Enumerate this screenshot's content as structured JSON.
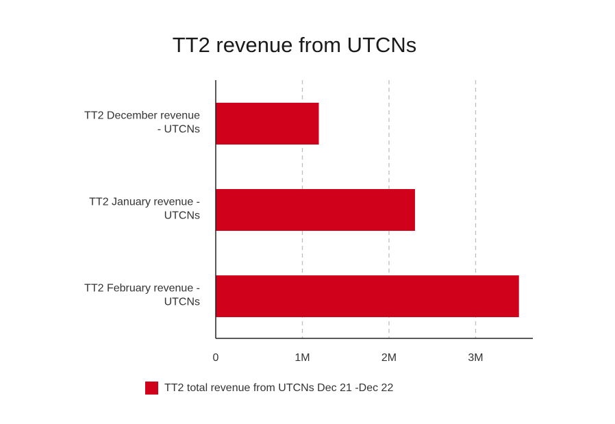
{
  "chart_data": {
    "type": "bar",
    "orientation": "horizontal",
    "title": "TT2 revenue from UTCNs",
    "categories": [
      [
        "TT2 December revenue",
        "- UTCNs"
      ],
      [
        "TT2 January revenue -",
        "UTCNs"
      ],
      [
        "TT2 February revenue -",
        "UTCNs"
      ]
    ],
    "series": [
      {
        "name": "TT2 total revenue from UTCNs Dec 21 -Dec 22",
        "values": [
          1190000,
          2300000,
          3500000
        ],
        "color": "#d0021b"
      }
    ],
    "xlim": [
      0,
      3650000
    ],
    "ticks": [
      {
        "value": 0,
        "label": "0"
      },
      {
        "value": 1000000,
        "label": "1M"
      },
      {
        "value": 2000000,
        "label": "2M"
      },
      {
        "value": 3000000,
        "label": "3M"
      }
    ],
    "grid": "vertical-dashed",
    "legend_position": "bottom"
  }
}
